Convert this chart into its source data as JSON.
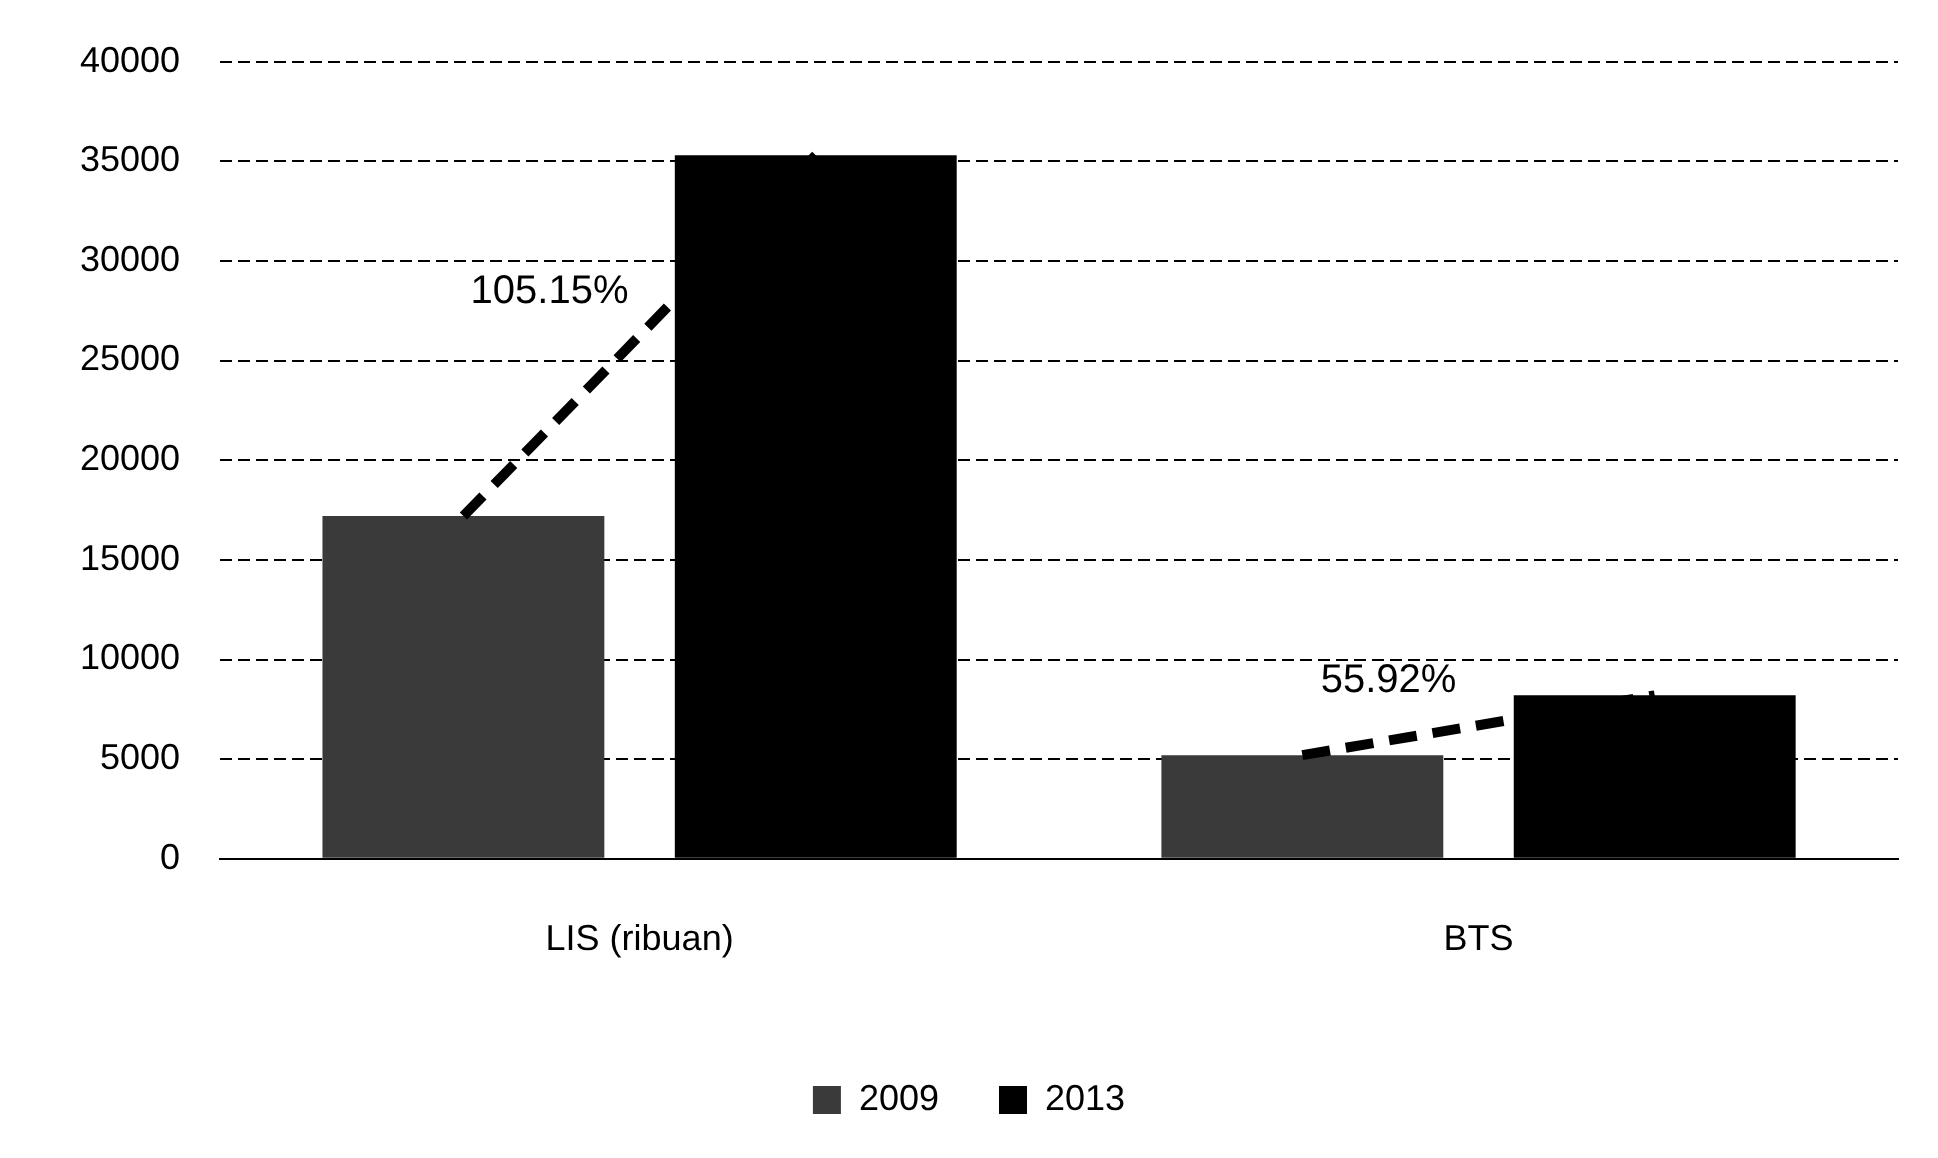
{
  "chart_data": {
    "type": "bar",
    "categories": [
      "LIS (ribuan)",
      "BTS"
    ],
    "series": [
      {
        "name": "2009",
        "color": "#3a3a3a",
        "values": [
          17200,
          5200
        ]
      },
      {
        "name": "2013",
        "color": "#000000",
        "values": [
          35300,
          8200
        ]
      }
    ],
    "ylim": [
      0,
      40000
    ],
    "yticks": [
      0,
      5000,
      10000,
      15000,
      20000,
      25000,
      30000,
      35000,
      40000
    ],
    "grid": "y",
    "legend": "bottom",
    "annotations": [
      "105.15%",
      "55.92%"
    ]
  }
}
